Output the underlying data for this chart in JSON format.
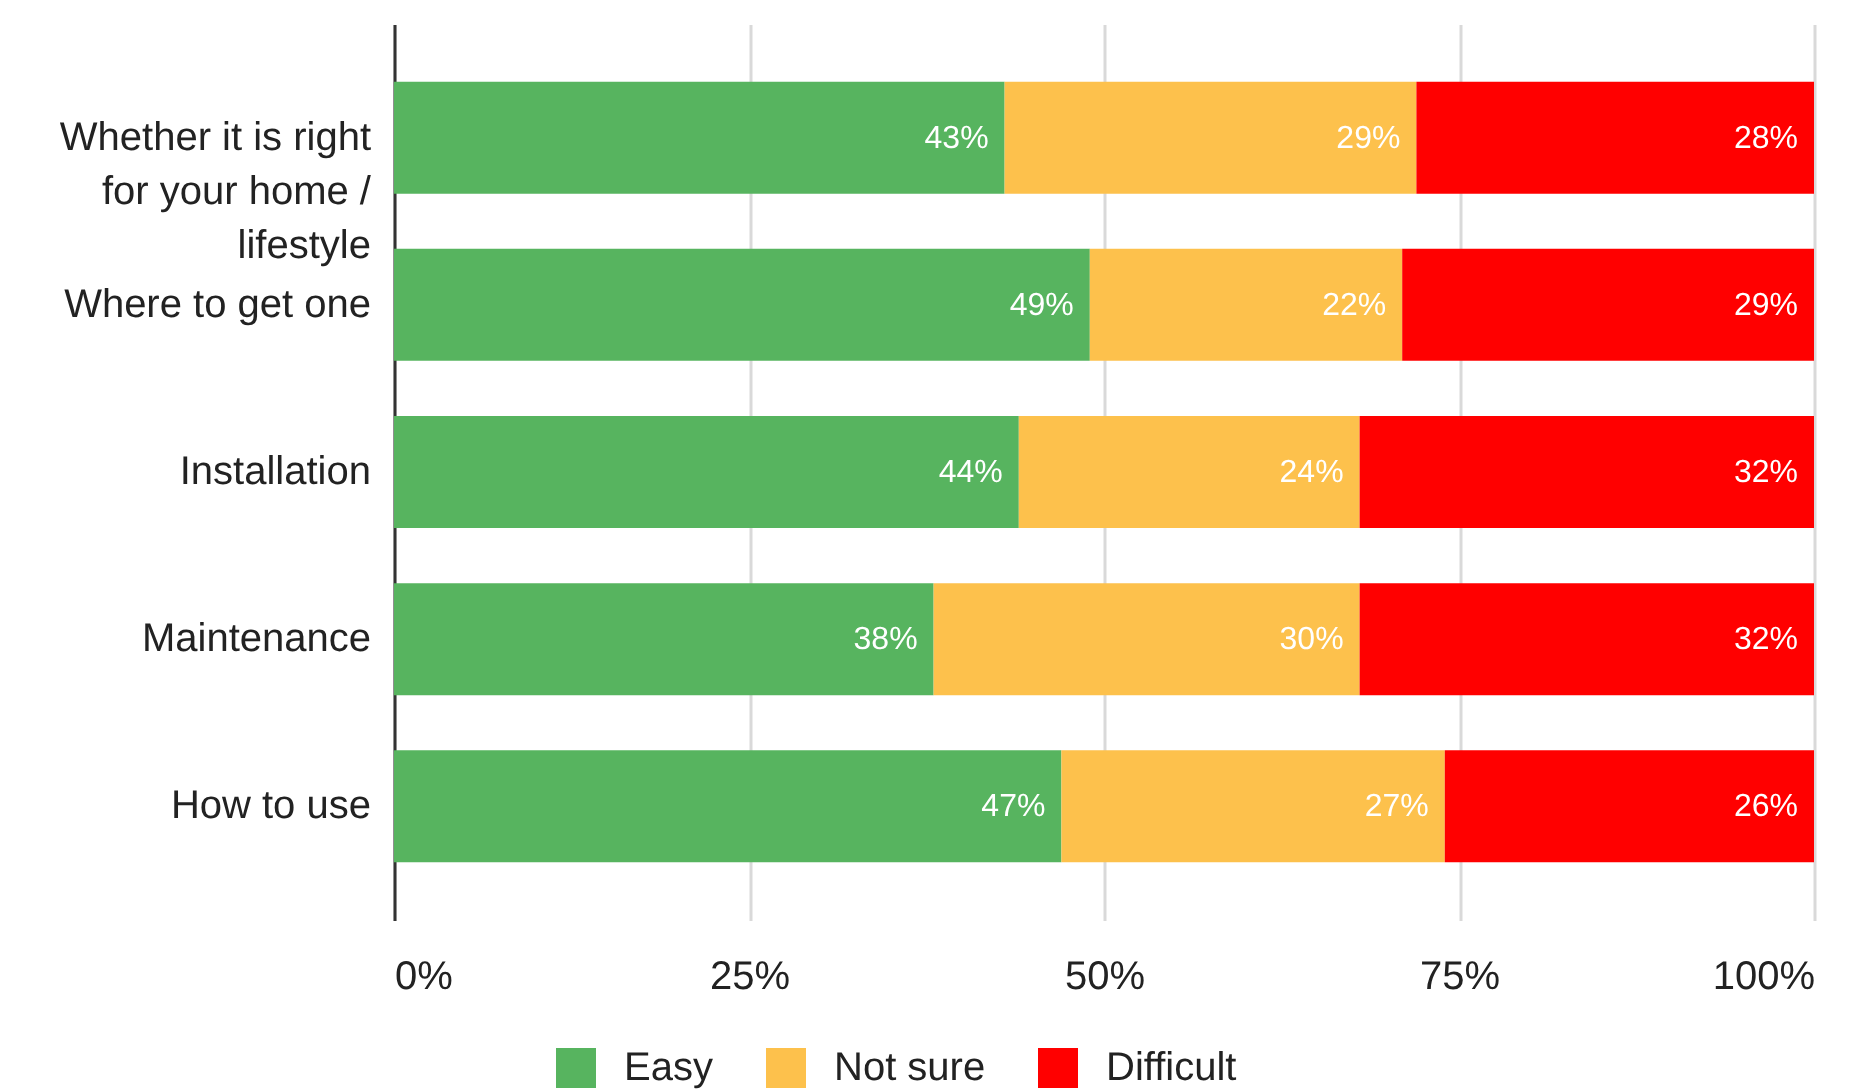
{
  "chart_data": {
    "type": "bar",
    "orientation": "horizontal",
    "stacked": true,
    "categories": [
      "Whether it is right for your home / lifestyle",
      "Where to get one",
      "Installation",
      "Maintenance",
      "How to use"
    ],
    "series": [
      {
        "name": "Easy",
        "color": "#57b45f",
        "values": [
          43,
          49,
          44,
          38,
          47
        ],
        "value_labels": [
          "43%",
          "49%",
          "44%",
          "38%",
          "47%"
        ]
      },
      {
        "name": "Not sure",
        "color": "#fdc14c",
        "values": [
          29,
          22,
          24,
          30,
          27
        ],
        "value_labels": [
          "29%",
          "22%",
          "24%",
          "30%",
          "27%"
        ]
      },
      {
        "name": "Difficult",
        "color": "#ff0000",
        "values": [
          28,
          29,
          32,
          32,
          26
        ],
        "value_labels": [
          "28%",
          "29%",
          "32%",
          "32%",
          "26%"
        ]
      }
    ],
    "xlim": [
      0,
      100
    ],
    "xticks": [
      {
        "value": 0,
        "label": "0%"
      },
      {
        "value": 25,
        "label": "25%"
      },
      {
        "value": 50,
        "label": "50%"
      },
      {
        "value": 75,
        "label": "75%"
      },
      {
        "value": 100,
        "label": "100%"
      }
    ],
    "grid": "x",
    "legend": "bottom"
  }
}
